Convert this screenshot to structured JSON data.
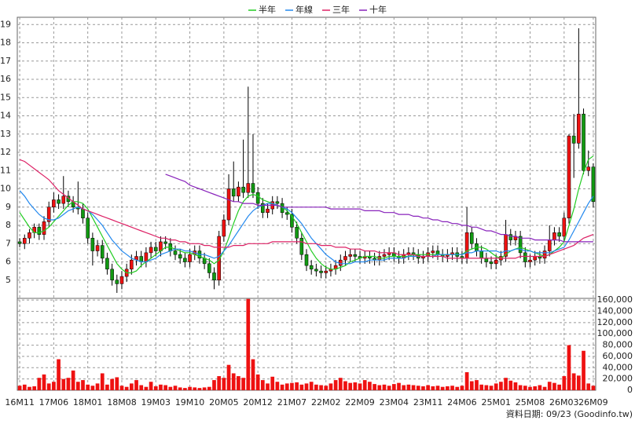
{
  "chart_data": [
    {
      "type": "candlestick",
      "ylim": [
        4,
        19.4
      ],
      "yticks": [
        5,
        6,
        7,
        8,
        9,
        10,
        11,
        12,
        13,
        14,
        15,
        16,
        17,
        18,
        19
      ],
      "grid": true,
      "up_color": "#ee1111",
      "down_color": "#119911",
      "open": [
        7.1,
        7.0,
        7.3,
        7.6,
        7.9,
        7.5,
        8.2,
        9.0,
        9.4,
        9.2,
        9.6,
        9.3,
        9.0,
        8.9,
        8.4,
        7.3,
        6.6,
        6.9,
        6.2,
        5.6,
        5.0,
        4.8,
        5.2,
        5.6,
        6.1,
        6.3,
        6.0,
        6.5,
        6.8,
        6.6,
        7.1,
        7.0,
        6.6,
        6.4,
        6.2,
        6.0,
        6.4,
        6.6,
        6.2,
        5.9,
        5.4,
        5.0,
        7.4,
        8.3,
        10.0,
        9.6,
        10.1,
        9.8,
        10.3,
        9.8,
        9.2,
        8.7,
        8.9,
        9.3,
        9.2,
        8.7,
        8.6,
        7.9,
        7.3,
        6.4,
        5.8,
        5.6,
        5.5,
        5.4,
        5.5,
        5.6,
        5.8,
        6.1,
        6.3,
        6.4,
        6.3,
        6.2,
        6.3,
        6.2,
        6.1,
        6.3,
        6.4,
        6.5,
        6.3,
        6.2,
        6.4,
        6.5,
        6.4,
        6.2,
        6.3,
        6.5,
        6.6,
        6.4,
        6.3,
        6.4,
        6.5,
        6.3,
        6.2,
        7.6,
        7.0,
        6.6,
        6.2,
        6.0,
        5.9,
        6.1,
        6.3,
        7.5,
        7.2,
        7.4,
        6.5,
        6.0,
        6.1,
        6.3,
        6.2,
        6.6,
        7.2,
        7.6,
        7.4,
        8.4,
        12.9,
        12.5,
        14.1,
        11.0,
        11.2
      ],
      "high": [
        7.3,
        7.5,
        7.8,
        8.1,
        8.1,
        8.5,
        9.3,
        9.8,
        9.7,
        10.7,
        9.9,
        9.6,
        10.4,
        9.2,
        8.7,
        7.6,
        7.2,
        7.2,
        6.5,
        5.9,
        5.3,
        5.5,
        5.9,
        6.4,
        6.6,
        6.6,
        6.8,
        7.1,
        7.1,
        7.4,
        7.4,
        7.3,
        6.9,
        6.7,
        6.5,
        6.7,
        6.9,
        6.9,
        6.5,
        6.2,
        5.7,
        7.7,
        8.6,
        10.8,
        11.5,
        10.4,
        12.7,
        15.6,
        13.0,
        10.1,
        9.5,
        9.2,
        9.6,
        9.6,
        9.5,
        9.0,
        8.9,
        8.2,
        7.6,
        6.7,
        6.1,
        5.9,
        5.8,
        5.8,
        5.9,
        6.1,
        6.4,
        6.6,
        6.7,
        6.7,
        6.6,
        6.6,
        6.6,
        6.5,
        6.6,
        6.7,
        6.8,
        6.8,
        6.6,
        6.7,
        6.8,
        6.8,
        6.7,
        6.6,
        6.8,
        6.9,
        6.9,
        6.7,
        6.7,
        6.8,
        6.8,
        6.6,
        9.0,
        7.9,
        7.3,
        6.9,
        6.5,
        6.3,
        6.4,
        6.6,
        8.3,
        7.8,
        7.7,
        7.7,
        6.8,
        6.4,
        6.6,
        6.6,
        6.9,
        8.0,
        7.9,
        7.9,
        8.7,
        13.0,
        14.1,
        18.8,
        14.4,
        12.1,
        11.4
      ],
      "low": [
        6.8,
        6.7,
        7.0,
        7.3,
        7.2,
        7.2,
        7.9,
        8.7,
        8.9,
        8.9,
        9.0,
        8.7,
        8.6,
        8.1,
        7.0,
        5.8,
        6.3,
        5.9,
        5.3,
        4.7,
        4.3,
        4.5,
        4.9,
        5.3,
        5.8,
        5.7,
        5.7,
        6.2,
        6.3,
        6.3,
        6.7,
        6.3,
        6.1,
        5.9,
        5.7,
        5.7,
        6.1,
        5.9,
        5.6,
        5.1,
        4.5,
        4.7,
        7.1,
        8.0,
        9.3,
        9.3,
        9.5,
        9.5,
        9.5,
        8.9,
        8.4,
        8.4,
        8.6,
        8.9,
        8.4,
        8.3,
        7.6,
        7.0,
        6.1,
        5.5,
        5.3,
        5.2,
        5.1,
        5.1,
        5.2,
        5.3,
        5.5,
        5.8,
        6.0,
        6.0,
        5.9,
        5.9,
        5.9,
        5.8,
        5.8,
        6.0,
        6.1,
        6.0,
        5.9,
        5.9,
        6.1,
        6.1,
        5.9,
        5.9,
        6.0,
        6.2,
        6.1,
        6.0,
        6.0,
        6.1,
        6.0,
        5.9,
        5.9,
        6.7,
        6.3,
        5.9,
        5.7,
        5.6,
        5.6,
        5.8,
        6.0,
        6.9,
        6.9,
        6.2,
        5.7,
        5.7,
        5.8,
        5.9,
        5.9,
        6.3,
        6.9,
        7.1,
        7.1,
        8.1,
        10.6,
        12.2,
        10.8,
        10.7,
        9.0
      ],
      "close": [
        7.0,
        7.3,
        7.6,
        7.9,
        7.5,
        8.2,
        9.0,
        9.4,
        9.2,
        9.6,
        9.3,
        9.0,
        8.9,
        8.4,
        7.3,
        6.6,
        6.9,
        6.2,
        5.6,
        5.0,
        4.8,
        5.2,
        5.6,
        6.1,
        6.3,
        6.0,
        6.5,
        6.8,
        6.6,
        7.1,
        7.0,
        6.6,
        6.4,
        6.2,
        6.0,
        6.4,
        6.6,
        6.2,
        5.9,
        5.4,
        5.0,
        7.4,
        8.3,
        10.0,
        9.6,
        10.1,
        9.8,
        10.3,
        9.8,
        9.2,
        8.7,
        8.9,
        9.3,
        9.2,
        8.7,
        8.6,
        7.9,
        7.3,
        6.4,
        5.8,
        5.6,
        5.5,
        5.4,
        5.5,
        5.6,
        5.8,
        6.1,
        6.3,
        6.4,
        6.3,
        6.2,
        6.3,
        6.2,
        6.1,
        6.3,
        6.4,
        6.5,
        6.3,
        6.2,
        6.4,
        6.5,
        6.4,
        6.2,
        6.3,
        6.5,
        6.6,
        6.4,
        6.3,
        6.4,
        6.5,
        6.3,
        6.2,
        7.6,
        7.0,
        6.6,
        6.2,
        6.0,
        5.9,
        6.1,
        6.3,
        7.5,
        7.2,
        7.4,
        6.5,
        6.0,
        6.1,
        6.3,
        6.2,
        6.6,
        7.2,
        7.6,
        7.4,
        8.4,
        12.9,
        12.5,
        14.1,
        11.0,
        11.2,
        9.3
      ],
      "series": [
        {
          "name": "半年",
          "color": "#22cc22",
          "values": [
            8.7,
            8.3,
            7.9,
            7.6,
            7.6,
            7.7,
            7.9,
            8.2,
            8.5,
            8.8,
            9.1,
            9.3,
            9.3,
            9.2,
            8.9,
            8.4,
            7.9,
            7.4,
            6.9,
            6.4,
            5.9,
            5.6,
            5.4,
            5.4,
            5.5,
            5.8,
            6.0,
            6.2,
            6.4,
            6.6,
            6.8,
            6.8,
            6.7,
            6.6,
            6.5,
            6.5,
            6.4,
            6.3,
            6.2,
            6.1,
            5.9,
            6.1,
            6.6,
            7.3,
            8.1,
            8.8,
            9.3,
            9.6,
            9.7,
            9.6,
            9.4,
            9.3,
            9.2,
            9.1,
            9.0,
            8.8,
            8.5,
            8.1,
            7.6,
            7.1,
            6.6,
            6.2,
            5.9,
            5.7,
            5.6,
            5.6,
            5.7,
            5.8,
            6.0,
            6.1,
            6.2,
            6.3,
            6.3,
            6.3,
            6.2,
            6.2,
            6.3,
            6.3,
            6.3,
            6.3,
            6.3,
            6.4,
            6.4,
            6.4,
            6.4,
            6.4,
            6.4,
            6.4,
            6.4,
            6.4,
            6.4,
            6.4,
            6.6,
            6.7,
            6.8,
            6.8,
            6.7,
            6.5,
            6.3,
            6.2,
            6.4,
            6.6,
            6.7,
            6.8,
            6.7,
            6.6,
            6.5,
            6.4,
            6.3,
            6.4,
            6.6,
            6.8,
            7.1,
            8.0,
            8.9,
            10.0,
            10.9,
            11.6,
            11.8
          ]
        },
        {
          "name": "年線",
          "color": "#2288ee",
          "values": [
            9.9,
            9.6,
            9.2,
            8.9,
            8.6,
            8.4,
            8.3,
            8.3,
            8.4,
            8.6,
            8.8,
            8.9,
            9.0,
            8.9,
            8.8,
            8.6,
            8.3,
            8.0,
            7.6,
            7.2,
            6.9,
            6.6,
            6.4,
            6.2,
            6.1,
            6.0,
            6.0,
            6.1,
            6.2,
            6.4,
            6.5,
            6.6,
            6.7,
            6.7,
            6.6,
            6.6,
            6.5,
            6.4,
            6.4,
            6.3,
            6.2,
            6.3,
            6.6,
            6.9,
            7.3,
            7.7,
            8.1,
            8.5,
            8.8,
            9.0,
            9.1,
            9.2,
            9.2,
            9.1,
            9.0,
            8.9,
            8.7,
            8.4,
            8.1,
            7.7,
            7.3,
            7.0,
            6.7,
            6.4,
            6.2,
            6.0,
            5.9,
            5.9,
            5.9,
            6.0,
            6.0,
            6.0,
            6.1,
            6.1,
            6.1,
            6.1,
            6.2,
            6.2,
            6.2,
            6.2,
            6.3,
            6.3,
            6.3,
            6.3,
            6.3,
            6.3,
            6.4,
            6.4,
            6.4,
            6.4,
            6.4,
            6.4,
            6.5,
            6.5,
            6.6,
            6.6,
            6.6,
            6.6,
            6.6,
            6.5,
            6.6,
            6.6,
            6.7,
            6.7,
            6.6,
            6.6,
            6.5,
            6.5,
            6.5,
            6.5,
            6.6,
            6.7,
            6.8,
            7.2,
            7.7,
            8.2,
            8.7,
            9.2,
            9.6
          ]
        },
        {
          "name": "三年",
          "color": "#dd2266",
          "values": [
            11.6,
            11.5,
            11.3,
            11.1,
            10.9,
            10.7,
            10.5,
            10.2,
            9.9,
            9.7,
            9.5,
            9.3,
            9.1,
            8.9,
            8.8,
            8.7,
            8.6,
            8.5,
            8.4,
            8.3,
            8.2,
            8.1,
            8.0,
            7.9,
            7.8,
            7.7,
            7.6,
            7.5,
            7.4,
            7.3,
            7.3,
            7.2,
            7.2,
            7.1,
            7.1,
            7.0,
            7.0,
            7.0,
            6.9,
            6.9,
            6.8,
            6.8,
            6.8,
            6.8,
            6.9,
            6.9,
            6.9,
            7.0,
            7.0,
            7.0,
            7.0,
            7.0,
            7.1,
            7.1,
            7.1,
            7.1,
            7.1,
            7.1,
            7.1,
            7.0,
            7.0,
            7.0,
            6.9,
            6.9,
            6.9,
            6.8,
            6.8,
            6.8,
            6.7,
            6.7,
            6.7,
            6.6,
            6.6,
            6.6,
            6.5,
            6.5,
            6.5,
            6.5,
            6.4,
            6.4,
            6.4,
            6.4,
            6.3,
            6.3,
            6.3,
            6.3,
            6.3,
            6.3,
            6.2,
            6.2,
            6.2,
            6.2,
            6.2,
            6.2,
            6.2,
            6.2,
            6.2,
            6.2,
            6.2,
            6.2,
            6.2,
            6.2,
            6.2,
            6.3,
            6.3,
            6.3,
            6.3,
            6.3,
            6.3,
            6.4,
            6.5,
            6.6,
            6.7,
            6.8,
            6.9,
            7.1,
            7.3,
            7.4,
            7.5
          ]
        },
        {
          "name": "十年",
          "color": "#8822bb",
          "values": [
            null,
            null,
            null,
            null,
            null,
            null,
            null,
            null,
            null,
            null,
            null,
            null,
            null,
            null,
            null,
            null,
            null,
            null,
            null,
            null,
            null,
            null,
            null,
            null,
            null,
            null,
            null,
            null,
            null,
            null,
            10.8,
            10.7,
            10.6,
            10.5,
            10.4,
            10.2,
            10.1,
            10.0,
            9.9,
            9.8,
            9.7,
            9.6,
            9.5,
            9.4,
            9.3,
            9.3,
            9.2,
            9.2,
            9.2,
            9.1,
            9.1,
            9.1,
            9.1,
            9.1,
            9.0,
            9.0,
            9.0,
            9.0,
            9.0,
            9.0,
            9.0,
            9.0,
            9.0,
            9.0,
            8.9,
            8.9,
            8.9,
            8.9,
            8.9,
            8.9,
            8.9,
            8.8,
            8.8,
            8.8,
            8.8,
            8.7,
            8.7,
            8.7,
            8.6,
            8.6,
            8.6,
            8.5,
            8.5,
            8.4,
            8.4,
            8.3,
            8.3,
            8.2,
            8.2,
            8.1,
            8.1,
            8.0,
            8.0,
            7.9,
            7.9,
            7.8,
            7.7,
            7.7,
            7.6,
            7.5,
            7.5,
            7.4,
            7.4,
            7.3,
            7.3,
            7.3,
            7.2,
            7.2,
            7.2,
            7.2,
            7.2,
            7.2,
            7.1,
            7.1,
            7.1,
            7.1,
            7.1,
            7.1,
            7.1
          ]
        }
      ]
    },
    {
      "type": "bar",
      "color": "#ee1111",
      "ylim": [
        0,
        163000
      ],
      "yticks": [
        0,
        {
          "value": 20000,
          "label": "20,000"
        },
        {
          "value": 40000,
          "label": "40,000"
        },
        {
          "value": 60000,
          "label": "60,000"
        },
        {
          "value": 80000,
          "label": "80,000"
        },
        {
          "value": 100000,
          "label": "100,000"
        },
        {
          "value": 120000,
          "label": "120,000"
        },
        {
          "value": 140000,
          "label": "140,000"
        },
        {
          "value": 160000,
          "label": "160,000"
        }
      ],
      "grid": true,
      "categories": [
        "16M11",
        null,
        null,
        null,
        null,
        null,
        null,
        "17M06",
        null,
        null,
        null,
        null,
        null,
        null,
        "18M01",
        null,
        null,
        null,
        null,
        null,
        null,
        "18M08",
        null,
        null,
        null,
        null,
        null,
        null,
        "19M03",
        null,
        null,
        null,
        null,
        null,
        null,
        "19M10",
        null,
        null,
        null,
        null,
        null,
        null,
        "20M05",
        null,
        null,
        null,
        null,
        null,
        null,
        "20M12",
        null,
        null,
        null,
        null,
        null,
        null,
        "21M07",
        null,
        null,
        null,
        null,
        null,
        null,
        "22M02",
        null,
        null,
        null,
        null,
        null,
        null,
        "22M09",
        null,
        null,
        null,
        null,
        null,
        null,
        "23M04",
        null,
        null,
        null,
        null,
        null,
        null,
        "23M11",
        null,
        null,
        null,
        null,
        null,
        null,
        "24M06",
        null,
        null,
        null,
        null,
        null,
        null,
        "25M01",
        null,
        null,
        null,
        null,
        null,
        null,
        "25M08",
        null,
        null,
        null,
        null,
        null,
        null,
        "26M03",
        null,
        null,
        null,
        null,
        null,
        "26M09"
      ],
      "values": [
        8000,
        10000,
        6000,
        7000,
        22000,
        28000,
        12000,
        15000,
        55000,
        20000,
        22000,
        35000,
        15000,
        18000,
        10000,
        8000,
        12000,
        30000,
        10000,
        20000,
        23000,
        8000,
        6000,
        12000,
        18000,
        9000,
        6000,
        15000,
        7000,
        10000,
        9000,
        6000,
        8000,
        5000,
        4000,
        6000,
        5000,
        4000,
        5000,
        6000,
        18000,
        25000,
        22000,
        45000,
        30000,
        25000,
        22000,
        162000,
        55000,
        28000,
        18000,
        12000,
        24000,
        15000,
        10000,
        12000,
        13000,
        14000,
        10000,
        12000,
        15000,
        10000,
        9000,
        8000,
        12000,
        18000,
        22000,
        16000,
        13000,
        14000,
        12000,
        18000,
        15000,
        11000,
        9000,
        10000,
        8000,
        11000,
        13000,
        9000,
        10000,
        9000,
        8000,
        7000,
        9000,
        7000,
        8000,
        6000,
        7000,
        8000,
        6000,
        8000,
        32000,
        16000,
        18000,
        10000,
        9000,
        8000,
        12000,
        15000,
        22000,
        17000,
        14000,
        9000,
        8000,
        6000,
        7000,
        9000,
        6000,
        15000,
        13000,
        10000,
        25000,
        80000,
        30000,
        26000,
        70000,
        12000,
        8000
      ],
      "note": "資料日期: 09/23 (Goodinfo.tw)"
    }
  ]
}
